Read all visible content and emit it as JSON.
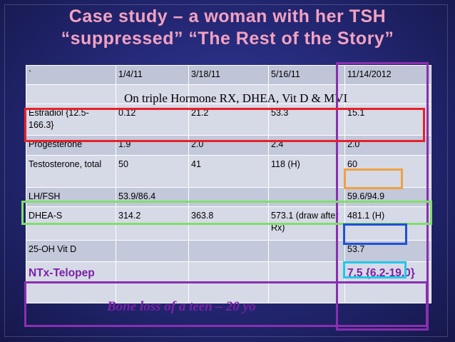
{
  "title": {
    "line1": "Case study – a woman with her TSH",
    "line2": "“suppressed” “The Rest of the Story”"
  },
  "table": {
    "header": [
      "`",
      "1/4/11",
      "3/18/11",
      "5/16/11",
      "11/14/2012"
    ],
    "rx_note": "On triple Hormone RX, DHEA, Vit D & MVI",
    "rows": [
      {
        "label": "Estradiol {12.5-166.3}",
        "values": [
          "0.12",
          "21.2",
          "53.3",
          "15.1"
        ]
      },
      {
        "label": "Progesterone",
        "values": [
          "1.9",
          "2.0",
          "2.4",
          "2.0"
        ]
      },
      {
        "label": "Testosterone, total",
        "values": [
          "50",
          "41",
          "118 (H)",
          "60"
        ]
      },
      {
        "label": "LH/FSH",
        "values": [
          "53.9/86.4",
          "",
          "",
          "59.6/94.9"
        ]
      },
      {
        "label": "DHEA-S",
        "values": [
          "314.2",
          "363.8",
          "573.1 (draw after Rx)",
          "481.1 (H)"
        ]
      },
      {
        "label": "25-OH Vit D",
        "values": [
          "",
          "",
          "",
          "53.7"
        ]
      },
      {
        "label": "NTx-Telopep",
        "values": [
          "",
          "",
          "",
          "7.5 {6.2-19.0}"
        ]
      }
    ]
  },
  "bone_loss_note": "Bone loss of a teen – 20  yo",
  "colors": {
    "red": "#e8202a",
    "purple": "#8a2fb0",
    "green": "#7ee06a",
    "orange": "#f0a040",
    "blue": "#1e50d8",
    "cyan": "#22c8e8",
    "title": "#f2a2c2"
  }
}
